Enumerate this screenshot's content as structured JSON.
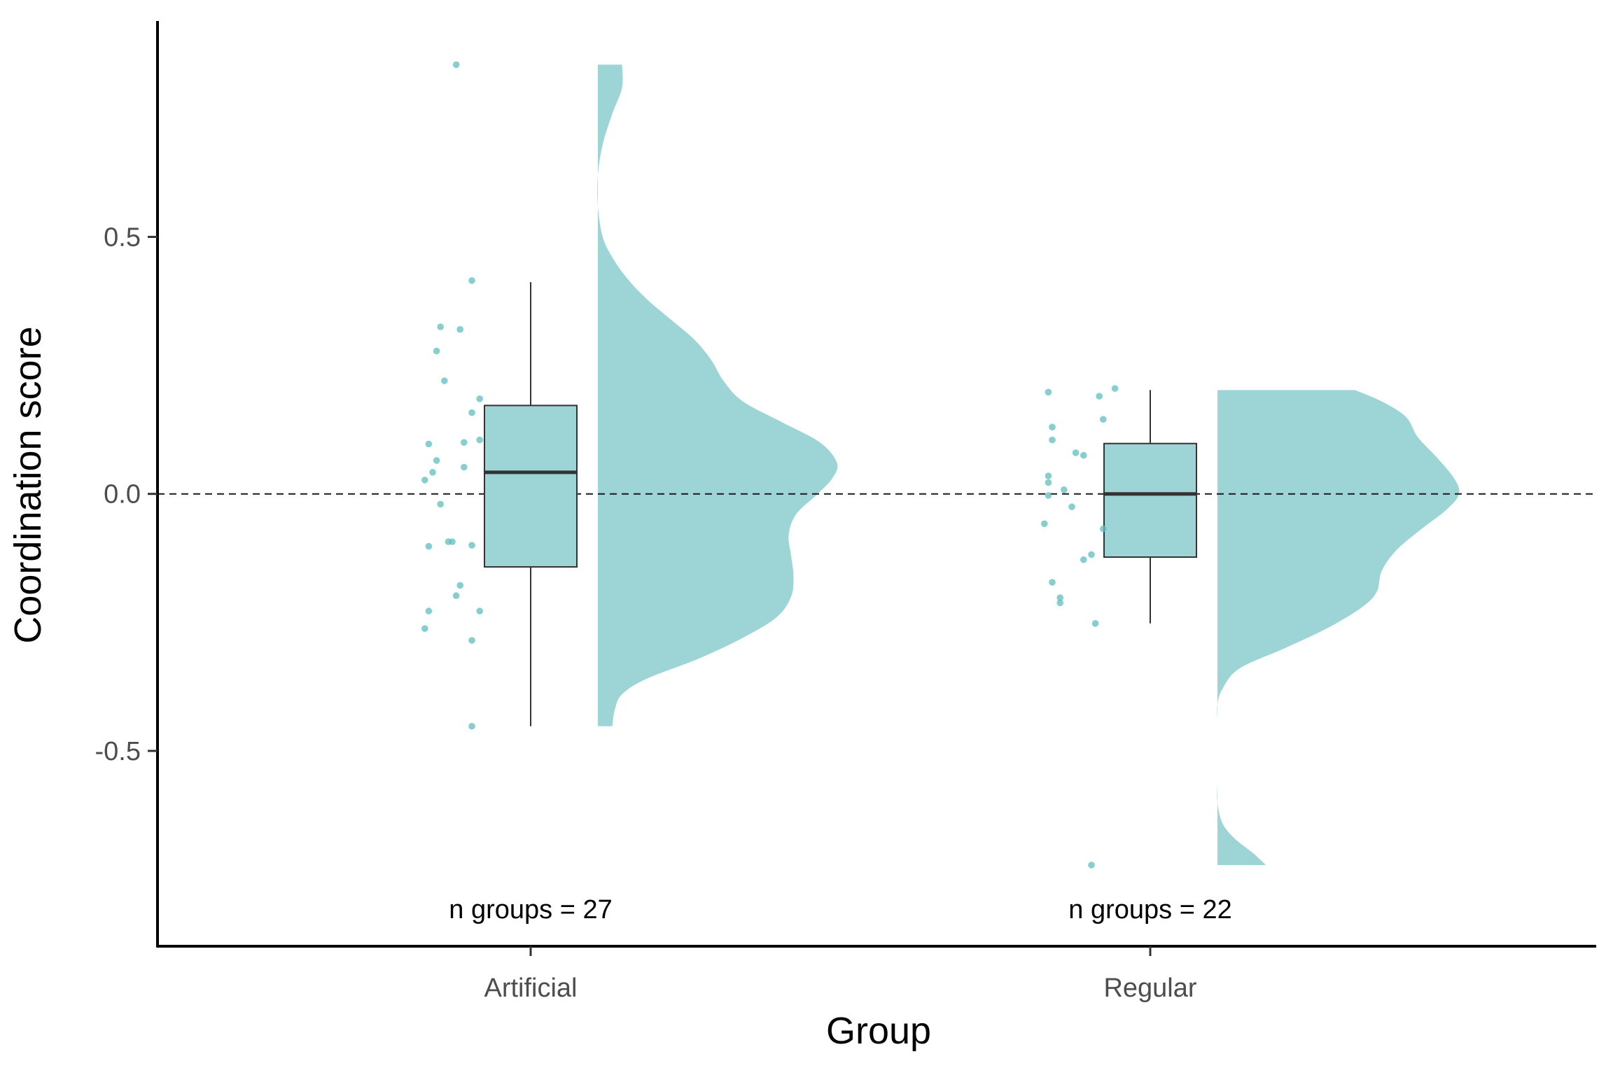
{
  "chart_data": {
    "type": "raincloud",
    "xlabel": "Group",
    "ylabel": "Coordination score",
    "categories": [
      "Artificial",
      "Regular"
    ],
    "ylim": [
      -0.88,
      0.92
    ],
    "yticks": [
      -0.5,
      0.0,
      0.5
    ],
    "ytick_labels": [
      "-0.5",
      "0.0",
      "0.5"
    ],
    "reference_line": {
      "y": 0,
      "style": "dashed"
    },
    "fill_color": "#9DD5D6",
    "point_color": "#5FBDBE",
    "grid": false,
    "legend": "none",
    "groups": [
      {
        "name": "Artificial",
        "annotation": "n groups = 27",
        "box": {
          "min": -0.452,
          "q1": -0.142,
          "median": 0.042,
          "q3": 0.172,
          "max": 0.412
        },
        "points": [
          {
            "jitter": -0.19,
            "y": 0.835
          },
          {
            "jitter": -0.15,
            "y": 0.415
          },
          {
            "jitter": -0.23,
            "y": 0.325
          },
          {
            "jitter": -0.18,
            "y": 0.32
          },
          {
            "jitter": -0.24,
            "y": 0.278
          },
          {
            "jitter": -0.22,
            "y": 0.22
          },
          {
            "jitter": -0.13,
            "y": 0.185
          },
          {
            "jitter": -0.15,
            "y": 0.158
          },
          {
            "jitter": -0.13,
            "y": 0.105
          },
          {
            "jitter": -0.17,
            "y": 0.1
          },
          {
            "jitter": -0.26,
            "y": 0.097
          },
          {
            "jitter": -0.24,
            "y": 0.065
          },
          {
            "jitter": -0.17,
            "y": 0.052
          },
          {
            "jitter": -0.25,
            "y": 0.042
          },
          {
            "jitter": -0.27,
            "y": 0.027
          },
          {
            "jitter": -0.23,
            "y": -0.02
          },
          {
            "jitter": -0.21,
            "y": -0.093
          },
          {
            "jitter": -0.2,
            "y": -0.093
          },
          {
            "jitter": -0.15,
            "y": -0.1
          },
          {
            "jitter": -0.26,
            "y": -0.102
          },
          {
            "jitter": -0.18,
            "y": -0.178
          },
          {
            "jitter": -0.19,
            "y": -0.198
          },
          {
            "jitter": -0.13,
            "y": -0.228
          },
          {
            "jitter": -0.26,
            "y": -0.228
          },
          {
            "jitter": -0.27,
            "y": -0.262
          },
          {
            "jitter": -0.15,
            "y": -0.285
          },
          {
            "jitter": -0.15,
            "y": -0.452
          }
        ],
        "density": [
          {
            "y": -0.452,
            "d": 0.06
          },
          {
            "y": -0.42,
            "d": 0.07
          },
          {
            "y": -0.39,
            "d": 0.1
          },
          {
            "y": -0.36,
            "d": 0.2
          },
          {
            "y": -0.32,
            "d": 0.42
          },
          {
            "y": -0.28,
            "d": 0.6
          },
          {
            "y": -0.24,
            "d": 0.74
          },
          {
            "y": -0.2,
            "d": 0.8
          },
          {
            "y": -0.16,
            "d": 0.81
          },
          {
            "y": -0.12,
            "d": 0.8
          },
          {
            "y": -0.08,
            "d": 0.79
          },
          {
            "y": -0.04,
            "d": 0.82
          },
          {
            "y": 0.0,
            "d": 0.91
          },
          {
            "y": 0.03,
            "d": 0.97
          },
          {
            "y": 0.06,
            "d": 0.99
          },
          {
            "y": 0.1,
            "d": 0.92
          },
          {
            "y": 0.14,
            "d": 0.76
          },
          {
            "y": 0.18,
            "d": 0.6
          },
          {
            "y": 0.22,
            "d": 0.52
          },
          {
            "y": 0.26,
            "d": 0.47
          },
          {
            "y": 0.3,
            "d": 0.4
          },
          {
            "y": 0.34,
            "d": 0.3
          },
          {
            "y": 0.38,
            "d": 0.2
          },
          {
            "y": 0.42,
            "d": 0.12
          },
          {
            "y": 0.46,
            "d": 0.06
          },
          {
            "y": 0.5,
            "d": 0.02
          },
          {
            "y": 0.56,
            "d": 0.0
          },
          {
            "y": 0.62,
            "d": 0.0
          },
          {
            "y": 0.68,
            "d": 0.02
          },
          {
            "y": 0.74,
            "d": 0.06
          },
          {
            "y": 0.79,
            "d": 0.1
          },
          {
            "y": 0.835,
            "d": 0.1
          }
        ]
      },
      {
        "name": "Regular",
        "annotation": "n groups = 22",
        "box": {
          "min": -0.252,
          "q1": -0.123,
          "median": 0.0,
          "q3": 0.098,
          "max": 0.202
        },
        "points": [
          {
            "jitter": -0.09,
            "y": 0.205
          },
          {
            "jitter": -0.26,
            "y": 0.198
          },
          {
            "jitter": -0.13,
            "y": 0.19
          },
          {
            "jitter": -0.12,
            "y": 0.145
          },
          {
            "jitter": -0.25,
            "y": 0.13
          },
          {
            "jitter": -0.25,
            "y": 0.105
          },
          {
            "jitter": -0.19,
            "y": 0.08
          },
          {
            "jitter": -0.17,
            "y": 0.075
          },
          {
            "jitter": -0.26,
            "y": 0.035
          },
          {
            "jitter": -0.26,
            "y": 0.022
          },
          {
            "jitter": -0.22,
            "y": 0.008
          },
          {
            "jitter": -0.26,
            "y": -0.003
          },
          {
            "jitter": -0.2,
            "y": -0.025
          },
          {
            "jitter": -0.27,
            "y": -0.058
          },
          {
            "jitter": -0.12,
            "y": -0.068
          },
          {
            "jitter": -0.15,
            "y": -0.118
          },
          {
            "jitter": -0.17,
            "y": -0.128
          },
          {
            "jitter": -0.25,
            "y": -0.172
          },
          {
            "jitter": -0.23,
            "y": -0.202
          },
          {
            "jitter": -0.23,
            "y": -0.212
          },
          {
            "jitter": -0.14,
            "y": -0.252
          },
          {
            "jitter": -0.15,
            "y": -0.722
          }
        ],
        "density": [
          {
            "y": -0.722,
            "d": 0.2
          },
          {
            "y": -0.7,
            "d": 0.15
          },
          {
            "y": -0.67,
            "d": 0.07
          },
          {
            "y": -0.64,
            "d": 0.02
          },
          {
            "y": -0.6,
            "d": 0.0
          },
          {
            "y": -0.56,
            "d": 0.0
          },
          {
            "y": -0.52,
            "d": 0.0
          },
          {
            "y": -0.48,
            "d": 0.0
          },
          {
            "y": -0.44,
            "d": 0.0
          },
          {
            "y": -0.41,
            "d": 0.0
          },
          {
            "y": -0.38,
            "d": 0.02
          },
          {
            "y": -0.34,
            "d": 0.09
          },
          {
            "y": -0.3,
            "d": 0.28
          },
          {
            "y": -0.26,
            "d": 0.46
          },
          {
            "y": -0.22,
            "d": 0.6
          },
          {
            "y": -0.19,
            "d": 0.66
          },
          {
            "y": -0.15,
            "d": 0.68
          },
          {
            "y": -0.11,
            "d": 0.74
          },
          {
            "y": -0.07,
            "d": 0.84
          },
          {
            "y": -0.03,
            "d": 0.95
          },
          {
            "y": 0.0,
            "d": 1.0
          },
          {
            "y": 0.03,
            "d": 0.98
          },
          {
            "y": 0.07,
            "d": 0.91
          },
          {
            "y": 0.11,
            "d": 0.83
          },
          {
            "y": 0.15,
            "d": 0.78
          },
          {
            "y": 0.18,
            "d": 0.68
          },
          {
            "y": 0.202,
            "d": 0.57
          }
        ]
      }
    ]
  }
}
